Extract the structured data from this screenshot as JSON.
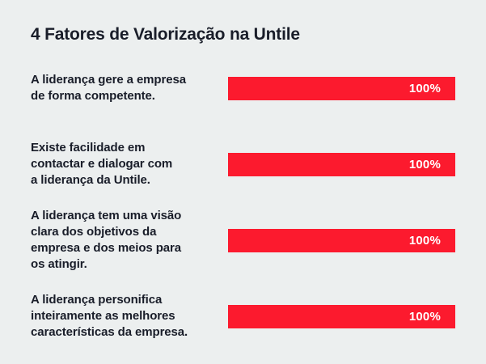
{
  "chart_data": {
    "type": "bar",
    "orientation": "horizontal",
    "title": "4 Fatores de Valorização na Untile",
    "categories": [
      "A liderança gere a empresa\nde forma competente.",
      "Existe facilidade em\ncontactar e dialogar com\na liderança da Untile.",
      "A liderança tem uma visão\nclara dos objetivos da\nempresa e dos meios para\nos atingir.",
      "A liderança personifica\ninteiramente as melhores\ncaracterísticas da empresa."
    ],
    "values": [
      100,
      100,
      100,
      100
    ],
    "value_labels": [
      "100%",
      "100%",
      "100%",
      "100%"
    ],
    "xlim": [
      0,
      100
    ],
    "grid": false,
    "legend": "none",
    "colors": {
      "bar": "#FC1A2E",
      "background": "#ECEFEF",
      "text": "#191D29",
      "value_text": "#FFFFFF"
    }
  }
}
